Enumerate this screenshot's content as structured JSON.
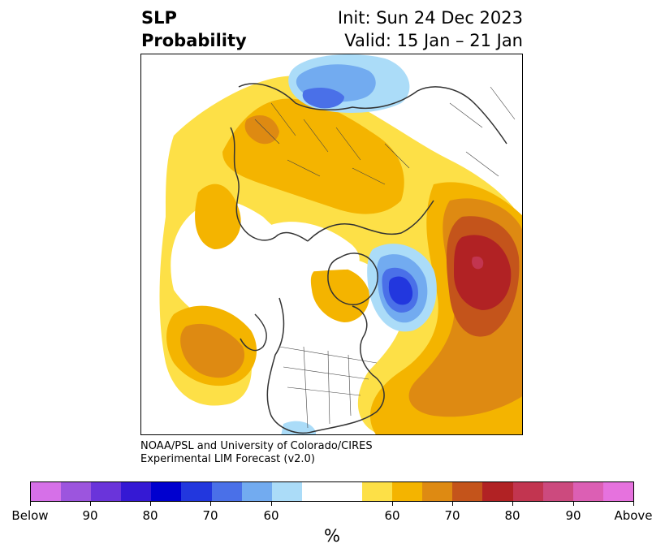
{
  "header": {
    "title_line1": "SLP",
    "title_line2": "Probability",
    "init": "Init: Sun 24 Dec 2023",
    "valid": "Valid: 15 Jan – 21 Jan"
  },
  "credit": {
    "line1": "NOAA/PSL and University of Colorado/CIRES",
    "line2": "Experimental LIM Forecast (v2.0)"
  },
  "colorbar": {
    "unit": "%",
    "colors": [
      "#d670e8",
      "#9c55de",
      "#6a34da",
      "#3519d4",
      "#0000cf",
      "#2237de",
      "#4a70e8",
      "#72abf0",
      "#abdcf8",
      "#ffffff",
      "#ffffff",
      "#fde047",
      "#f4b400",
      "#de8a12",
      "#c4541b",
      "#b12224",
      "#c23550",
      "#cc4a7e",
      "#dc5fb4",
      "#e672de"
    ],
    "tick_labels": [
      "Below",
      "90",
      "80",
      "70",
      "60",
      "60",
      "70",
      "80",
      "90",
      "Above"
    ]
  },
  "map": {
    "colors": {
      "yellow": "#fde047",
      "gold": "#f4b400",
      "orange": "#de8a12",
      "rust": "#c4541b",
      "red": "#b12224",
      "pink": "#c23550",
      "lightblue": "#abdcf8",
      "skyblue": "#72abf0",
      "medblue": "#4a70e8",
      "blue": "#2237de",
      "coast": "#333333"
    }
  }
}
